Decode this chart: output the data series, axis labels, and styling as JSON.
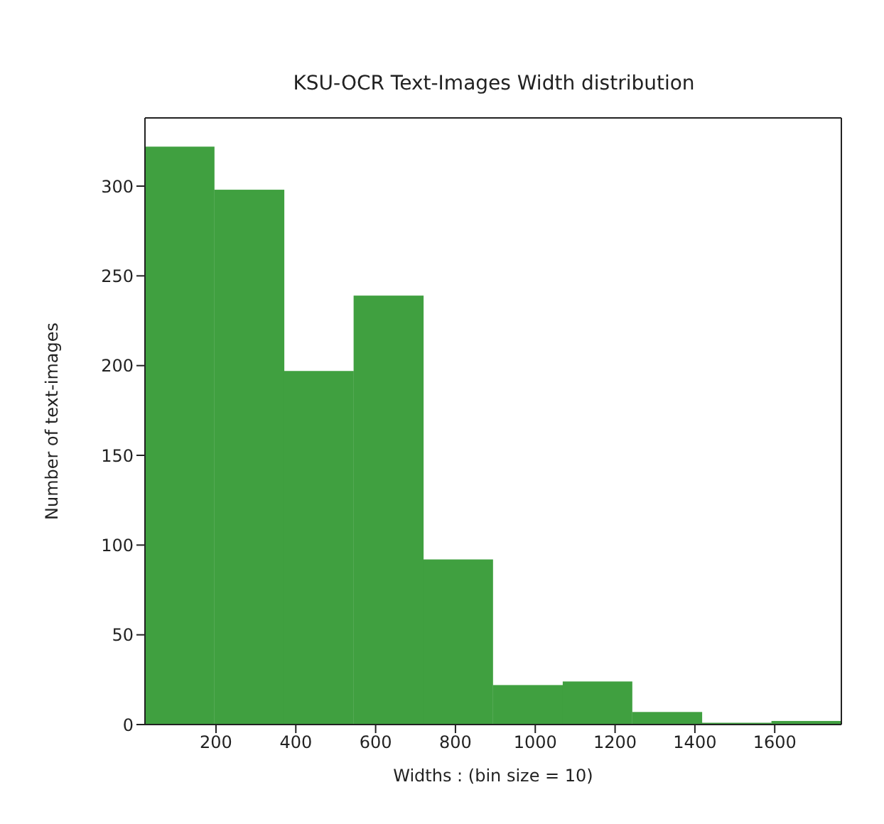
{
  "chart_data": {
    "type": "histogram",
    "title": "KSU-OCR Text-Images Width distribution",
    "xlabel": "Widths : (bin size = 10)",
    "ylabel": "Number of text-images",
    "bins": [
      22,
      196,
      371,
      545,
      720,
      894,
      1069,
      1243,
      1418,
      1592,
      1767
    ],
    "values": [
      322,
      298,
      197,
      239,
      92,
      22,
      24,
      7,
      1,
      2
    ],
    "color": "#40a040",
    "xlim": [
      22,
      1767
    ],
    "xticks": [
      200,
      400,
      600,
      800,
      1000,
      1200,
      1400,
      1600
    ],
    "ylim": [
      0,
      338
    ],
    "yticks": [
      0,
      50,
      100,
      150,
      200,
      250,
      300
    ],
    "grid": false
  }
}
